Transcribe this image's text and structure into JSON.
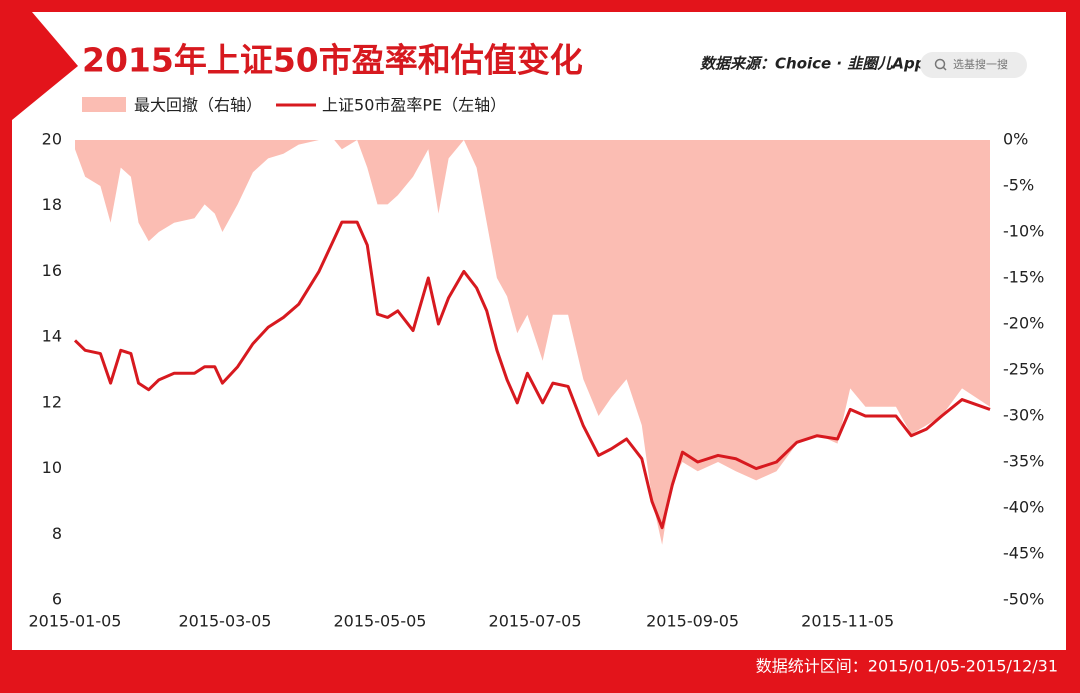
{
  "chart_data": {
    "type": "line",
    "title": "2015年上证50市盈率和估值变化",
    "source": "数据来源：Choice · 韭圈儿App",
    "search": "选基搜一搜",
    "footer": "数据统计区间：2015/01/05-2015/12/31",
    "x": [
      "2015-01-05",
      "2015-01-09",
      "2015-01-15",
      "2015-01-19",
      "2015-01-23",
      "2015-01-27",
      "2015-01-30",
      "2015-02-03",
      "2015-02-07",
      "2015-02-13",
      "2015-02-21",
      "2015-02-25",
      "2015-03-01",
      "2015-03-04",
      "2015-03-10",
      "2015-03-16",
      "2015-03-22",
      "2015-03-28",
      "2015-04-03",
      "2015-04-11",
      "2015-04-17",
      "2015-04-20",
      "2015-04-26",
      "2015-04-30",
      "2015-05-04",
      "2015-05-08",
      "2015-05-12",
      "2015-05-18",
      "2015-05-24",
      "2015-05-28",
      "2015-06-01",
      "2015-06-07",
      "2015-06-12",
      "2015-06-16",
      "2015-06-20",
      "2015-06-24",
      "2015-06-28",
      "2015-07-02",
      "2015-07-08",
      "2015-07-12",
      "2015-07-18",
      "2015-07-24",
      "2015-07-30",
      "2015-08-04",
      "2015-08-10",
      "2015-08-16",
      "2015-08-20",
      "2015-08-24",
      "2015-08-28",
      "2015-09-01",
      "2015-09-07",
      "2015-09-15",
      "2015-09-22",
      "2015-09-30",
      "2015-10-08",
      "2015-10-16",
      "2015-10-24",
      "2015-11-01",
      "2015-11-06",
      "2015-11-12",
      "2015-11-24",
      "2015-11-30",
      "2015-12-06",
      "2015-12-12",
      "2015-12-20",
      "2015-12-31"
    ],
    "series": [
      {
        "name": "最大回撤（右轴）",
        "type": "area",
        "axis": "y2",
        "color": "#fbbdb3",
        "values": [
          -1,
          -4,
          -5,
          -9,
          -3,
          -4,
          -9,
          -11,
          -10,
          -9,
          -8.5,
          -7,
          -8,
          -10,
          -7,
          -3.5,
          -2,
          -1.5,
          -0.5,
          0,
          0,
          -1,
          0,
          -3,
          -7,
          -7,
          -6,
          -4,
          -1,
          -8,
          -2,
          0,
          -3,
          -9,
          -15,
          -17,
          -21,
          -19,
          -24,
          -19,
          -19,
          -26,
          -30,
          -28,
          -26,
          -31,
          -39,
          -44,
          -37,
          -35,
          -36,
          -35,
          -36,
          -37,
          -36,
          -33,
          -32,
          -33,
          -27,
          -29,
          -29,
          -32,
          -31,
          -30,
          -27,
          -29
        ]
      },
      {
        "name": "上证50市盈率PE（左轴）",
        "type": "line",
        "color": "#d7191f",
        "values": [
          13.9,
          13.6,
          13.5,
          12.6,
          13.6,
          13.5,
          12.6,
          12.4,
          12.7,
          12.9,
          12.9,
          13.1,
          13.1,
          12.6,
          13.1,
          13.8,
          14.3,
          14.6,
          15.0,
          16.0,
          17.0,
          17.5,
          17.5,
          16.8,
          14.7,
          14.6,
          14.8,
          14.2,
          15.8,
          14.4,
          15.2,
          16.0,
          15.5,
          14.8,
          13.6,
          12.7,
          12.0,
          12.9,
          12.0,
          12.6,
          12.5,
          11.3,
          10.4,
          10.6,
          10.9,
          10.3,
          9.0,
          8.2,
          9.5,
          10.5,
          10.2,
          10.4,
          10.3,
          10.0,
          10.2,
          10.8,
          11.0,
          10.9,
          11.8,
          11.6,
          11.6,
          11.0,
          11.2,
          11.6,
          12.1,
          11.8
        ]
      }
    ],
    "xlim": [
      "2015-01-05",
      "2015-12-31"
    ],
    "xticks": [
      "2015-01-05",
      "2015-03-05",
      "2015-05-05",
      "2015-07-05",
      "2015-09-05",
      "2015-11-05"
    ],
    "ylim": [
      6,
      20
    ],
    "yticks": [
      6,
      8,
      10,
      12,
      14,
      16,
      18,
      20
    ],
    "y2lim": [
      -50,
      0
    ],
    "y2ticks": [
      {
        "value": 0,
        "label": "0%"
      },
      {
        "value": -5,
        "label": "-5%"
      },
      {
        "value": -10,
        "label": "-10%"
      },
      {
        "value": -15,
        "label": "-15%"
      },
      {
        "value": -20,
        "label": "-20%"
      },
      {
        "value": -25,
        "label": "-25%"
      },
      {
        "value": -30,
        "label": "-30%"
      },
      {
        "value": -35,
        "label": "-35%"
      },
      {
        "value": -40,
        "label": "-40%"
      },
      {
        "value": -45,
        "label": "-45%"
      },
      {
        "value": -50,
        "label": "-50%"
      }
    ],
    "grid": false
  }
}
